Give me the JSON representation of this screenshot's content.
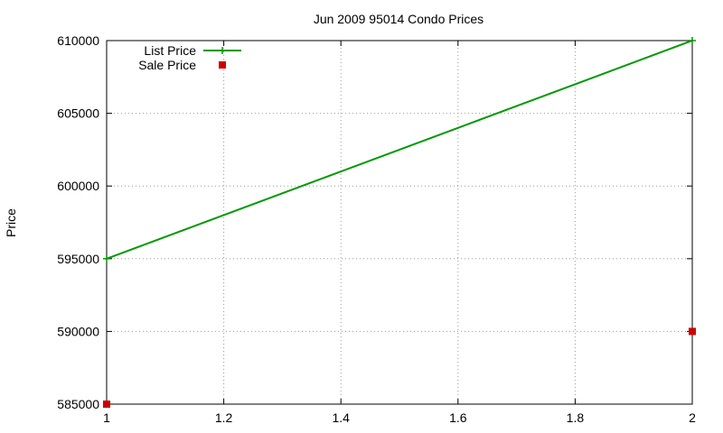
{
  "chart_data": {
    "type": "line",
    "title": "Jun 2009 95014 Condo Prices",
    "xlabel": "",
    "ylabel": "Price",
    "xlim": [
      1,
      2
    ],
    "ylim": [
      585000,
      610000
    ],
    "x_ticks": [
      1,
      1.2,
      1.4,
      1.6,
      1.8,
      2
    ],
    "x_tick_labels": [
      "1",
      "1.2",
      "1.4",
      "1.6",
      "1.8",
      "2"
    ],
    "y_ticks": [
      585000,
      590000,
      595000,
      600000,
      605000,
      610000
    ],
    "y_tick_labels": [
      "585000",
      "590000",
      "595000",
      "600000",
      "605000",
      "610000"
    ],
    "grid": true,
    "legend_position": "top-left",
    "series": [
      {
        "name": "List Price",
        "style": "linespoints",
        "marker": "plus",
        "color": "#009900",
        "points": [
          [
            1,
            595000
          ],
          [
            2,
            610000
          ]
        ]
      },
      {
        "name": "Sale Price",
        "style": "points",
        "marker": "square",
        "color": "#cc0000",
        "points": [
          [
            1,
            585000
          ],
          [
            2,
            590000
          ]
        ]
      }
    ]
  }
}
